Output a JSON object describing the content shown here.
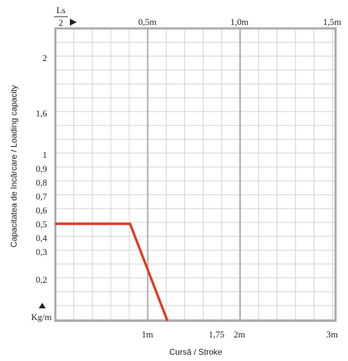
{
  "chart_data": {
    "type": "line",
    "xlabel": "Cursă / Stroke",
    "ylabel": "Capacitatea de încărcare / Loading capacity",
    "y_unit_label": "Kg/m",
    "top_axis_label": "Ls / 2",
    "top_axis_label_num": "Ls",
    "top_axis_label_den": "2",
    "top_tick_labels": [
      "0,5m",
      "1,0m",
      "1,5m"
    ],
    "bottom_tick_labels": [
      "1m",
      "1,75",
      "2m",
      "3m"
    ],
    "y_tick_labels": [
      "2",
      "1,6",
      "1",
      "0,9",
      "0,8",
      "0,7",
      "0,6",
      "0,5",
      "0,4",
      "0,3",
      "0,2"
    ],
    "x_unit": "m (stroke)",
    "xlim": [
      0,
      3
    ],
    "series": [
      {
        "color": "#e03a1e",
        "points": [
          {
            "x": 0.0,
            "y": 0.5
          },
          {
            "x": 0.8,
            "y": 0.5
          },
          {
            "x": 1.2,
            "y": 0.1
          }
        ]
      }
    ],
    "grid": true,
    "colors": {
      "grid_major": "#b0b0b0",
      "grid_minor": "#cfcfcf",
      "line": "#e03a1e"
    }
  }
}
